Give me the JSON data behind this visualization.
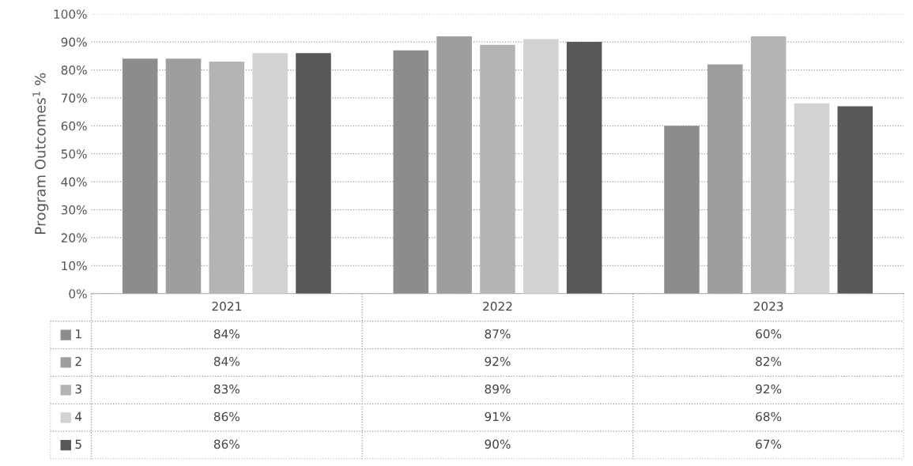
{
  "chart_data": {
    "type": "bar",
    "ylabel": "Program Outcomes$^{1}$ %",
    "categories": [
      "2021",
      "2022",
      "2023"
    ],
    "series": [
      {
        "name": "1",
        "color": "#8c8c8c",
        "values": [
          84,
          87,
          60
        ],
        "value_labels": [
          "84%",
          "87%",
          "60%"
        ]
      },
      {
        "name": "2",
        "color": "#9e9e9e",
        "values": [
          84,
          92,
          82
        ],
        "value_labels": [
          "84%",
          "92%",
          "82%"
        ]
      },
      {
        "name": "3",
        "color": "#b4b4b4",
        "values": [
          83,
          89,
          92
        ],
        "value_labels": [
          "83%",
          "89%",
          "92%"
        ]
      },
      {
        "name": "4",
        "color": "#d2d2d2",
        "values": [
          86,
          91,
          68
        ],
        "value_labels": [
          "86%",
          "91%",
          "68%"
        ]
      },
      {
        "name": "5",
        "color": "#585858",
        "values": [
          86,
          90,
          67
        ],
        "value_labels": [
          "86%",
          "90%",
          "67%"
        ]
      }
    ],
    "ylim": [
      0,
      100
    ],
    "yticks": [
      {
        "value": 0,
        "label": "0%"
      },
      {
        "value": 10,
        "label": "10%"
      },
      {
        "value": 20,
        "label": "20%"
      },
      {
        "value": 30,
        "label": "30%"
      },
      {
        "value": 40,
        "label": "40%"
      },
      {
        "value": 50,
        "label": "50%"
      },
      {
        "value": 60,
        "label": "60%"
      },
      {
        "value": 70,
        "label": "70%"
      },
      {
        "value": 80,
        "label": "80%"
      },
      {
        "value": 90,
        "label": "90%"
      },
      {
        "value": 100,
        "label": "100%"
      }
    ],
    "grid": "y",
    "legend": "bottom"
  }
}
